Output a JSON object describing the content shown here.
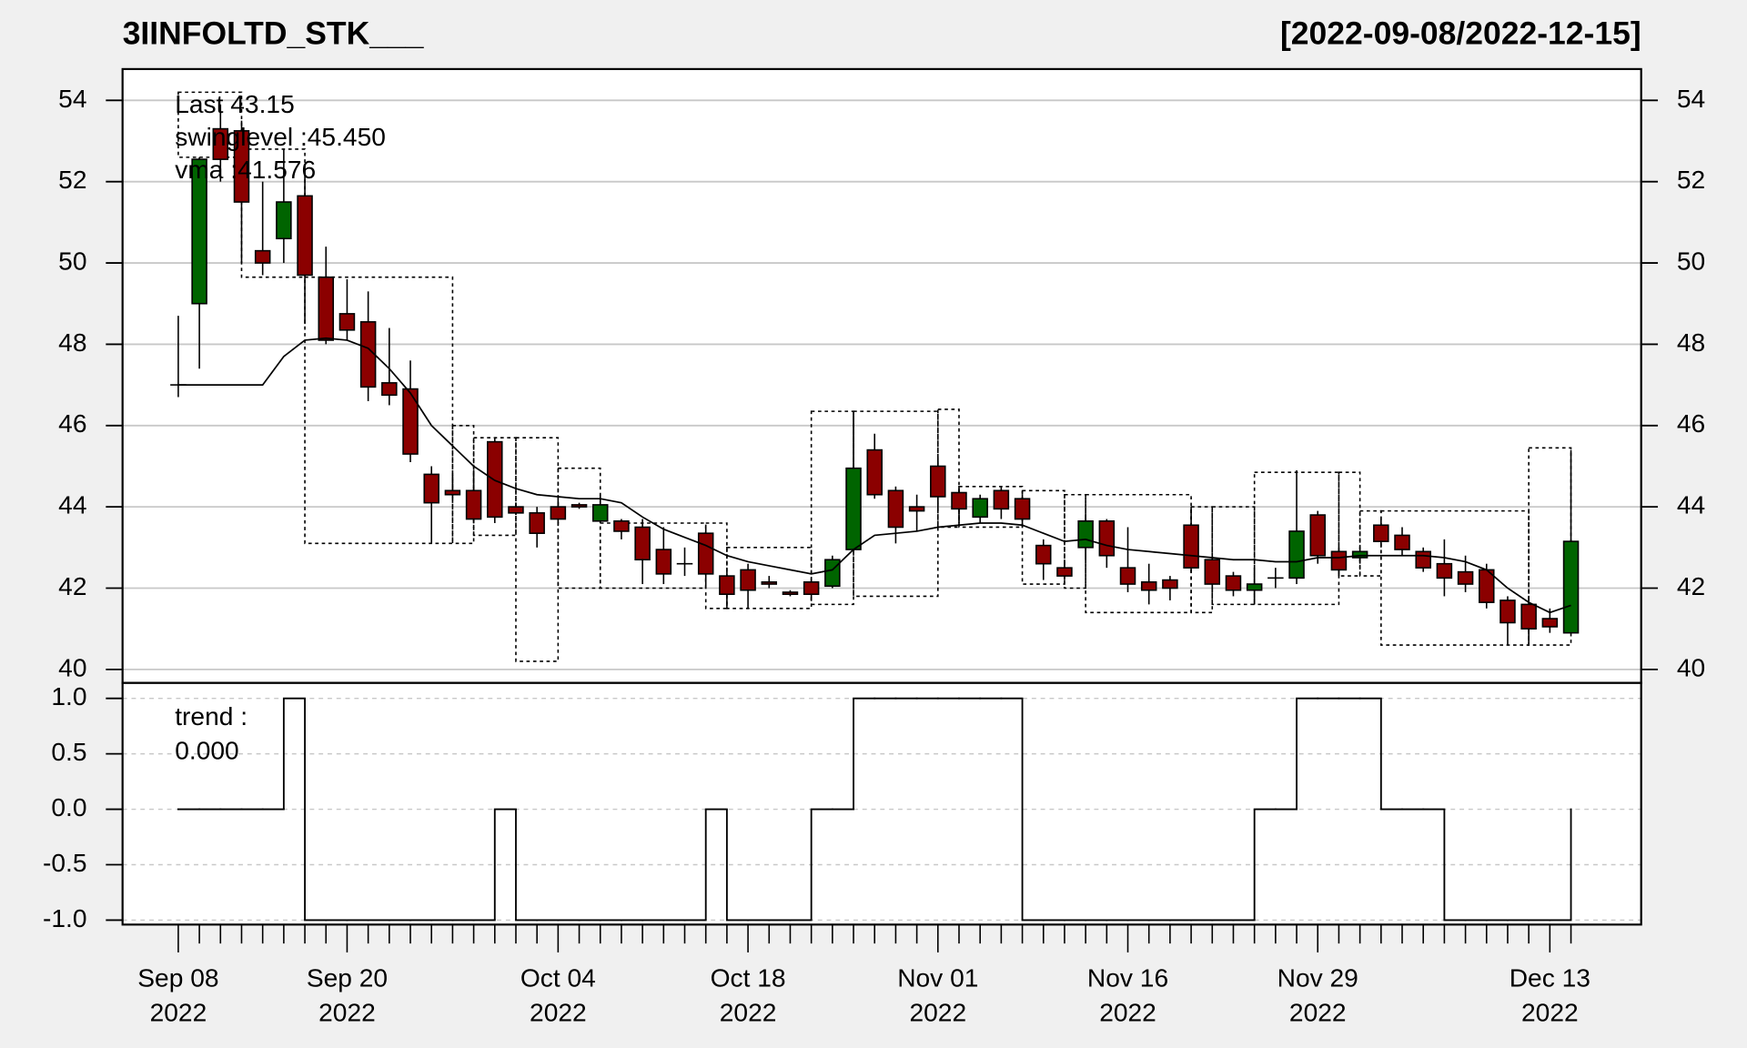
{
  "chart_data": [
    {
      "type": "candlestick",
      "title": "3IINFOLTD_STK___",
      "subtitle": "[2022-09-08/2022-12-15]",
      "annotations": [
        "Last 43.15",
        "swinglevel :45.450",
        "vma :41.576"
      ],
      "annotation_colors": [
        "#006400",
        "#000000",
        "#000000"
      ],
      "up_color": "#006400",
      "down_color": "#8b0000",
      "categories": [
        "Sep 08\n2022",
        null,
        null,
        null,
        null,
        null,
        null,
        null,
        "Sep 20\n2022",
        null,
        null,
        null,
        null,
        null,
        null,
        null,
        null,
        null,
        "Oct 04\n2022",
        null,
        null,
        null,
        null,
        null,
        null,
        null,
        null,
        "Oct 18\n2022",
        null,
        null,
        null,
        null,
        null,
        null,
        null,
        null,
        "Nov 01\n2022",
        null,
        null,
        null,
        null,
        null,
        null,
        null,
        null,
        "Nov 16\n2022",
        null,
        null,
        null,
        null,
        null,
        null,
        null,
        null,
        "Nov 29\n2022",
        null,
        null,
        null,
        null,
        null,
        null,
        null,
        null,
        null,
        null,
        "Dec 13\n2022",
        null
      ],
      "open": [
        47,
        49.0,
        53.3,
        53.25,
        50.3,
        50.6,
        51.65,
        49.65,
        48.75,
        48.55,
        47.05,
        46.9,
        44.8,
        44.4,
        44.4,
        45.6,
        44.0,
        43.85,
        44.0,
        44.05,
        43.65,
        43.65,
        43.5,
        42.95,
        42.6,
        43.35,
        42.3,
        42.45,
        42.15,
        41.9,
        42.15,
        42.05,
        42.95,
        45.4,
        44.4,
        44.0,
        45.0,
        44.35,
        43.75,
        44.4,
        44.2,
        43.05,
        42.5,
        43.0,
        43.65,
        42.5,
        42.15,
        42.2,
        43.55,
        42.7,
        42.3,
        41.95,
        42.25,
        42.25,
        43.8,
        42.9,
        42.75,
        43.55,
        43.3,
        42.9,
        42.6,
        42.4,
        42.45,
        41.7,
        41.6,
        41.25,
        40.9
      ],
      "high": [
        48.7,
        52.6,
        53.9,
        53.5,
        52.0,
        52.8,
        52.3,
        50.4,
        49.6,
        49.3,
        48.4,
        47.6,
        45.0,
        44.8,
        44.9,
        45.7,
        44.1,
        44.0,
        44.2,
        44.1,
        44.3,
        43.7,
        43.7,
        43.5,
        43.0,
        43.5,
        42.4,
        42.6,
        42.3,
        41.95,
        42.2,
        42.8,
        46.3,
        45.8,
        44.5,
        44.3,
        45.2,
        44.5,
        44.3,
        44.5,
        44.3,
        43.2,
        42.7,
        43.8,
        43.7,
        43.5,
        42.6,
        42.3,
        44.0,
        42.8,
        42.4,
        42.5,
        42.5,
        44.9,
        43.9,
        43.0,
        43.0,
        43.7,
        43.5,
        43.0,
        43.2,
        42.8,
        42.6,
        41.8,
        41.8,
        41.5,
        45.4
      ],
      "low": [
        46.7,
        47.4,
        52.0,
        50.0,
        49.7,
        50.0,
        48.5,
        48.0,
        48.1,
        46.6,
        46.5,
        45.1,
        43.1,
        44.2,
        43.6,
        43.6,
        43.8,
        43.0,
        43.6,
        43.95,
        43.6,
        43.2,
        42.1,
        42.1,
        42.3,
        42.0,
        41.5,
        41.5,
        42.0,
        41.8,
        41.7,
        42.0,
        42.9,
        44.2,
        43.1,
        43.4,
        43.9,
        43.6,
        43.6,
        43.7,
        43.5,
        42.2,
        42.2,
        42.7,
        42.5,
        41.9,
        41.6,
        41.7,
        42.4,
        41.9,
        41.8,
        41.6,
        42.0,
        42.1,
        42.6,
        42.3,
        42.6,
        43.0,
        42.8,
        42.4,
        41.8,
        41.9,
        41.5,
        40.6,
        40.6,
        40.9,
        40.9
      ],
      "close": [
        47,
        52.55,
        52.55,
        51.5,
        50.0,
        51.5,
        49.7,
        48.1,
        48.35,
        46.95,
        46.75,
        45.3,
        44.1,
        44.3,
        43.7,
        43.75,
        43.85,
        43.35,
        43.7,
        44.0,
        44.05,
        43.4,
        42.7,
        42.35,
        42.6,
        42.35,
        41.85,
        41.95,
        42.1,
        41.85,
        41.85,
        42.7,
        44.95,
        44.3,
        43.5,
        43.9,
        44.25,
        43.95,
        44.2,
        43.95,
        43.7,
        42.6,
        42.3,
        43.65,
        42.8,
        42.1,
        41.95,
        42.0,
        42.5,
        42.1,
        41.95,
        42.1,
        42.25,
        43.4,
        42.8,
        42.45,
        42.9,
        43.15,
        42.95,
        42.5,
        42.25,
        42.1,
        41.65,
        41.15,
        41.0,
        41.05,
        43.15
      ],
      "vma": {
        "color": "#000000",
        "values": [
          47.0,
          47.0,
          47.0,
          47.0,
          47.0,
          47.7,
          48.1,
          48.15,
          48.1,
          47.9,
          47.4,
          46.8,
          46.0,
          45.5,
          45.0,
          44.65,
          44.45,
          44.3,
          44.25,
          44.2,
          44.2,
          44.1,
          43.75,
          43.45,
          43.25,
          43.05,
          42.8,
          42.65,
          42.55,
          42.45,
          42.35,
          42.45,
          42.95,
          43.3,
          43.35,
          43.4,
          43.5,
          43.55,
          43.6,
          43.6,
          43.55,
          43.35,
          43.15,
          43.2,
          43.05,
          42.95,
          42.9,
          42.85,
          42.8,
          42.75,
          42.7,
          42.7,
          42.65,
          42.65,
          42.75,
          42.75,
          42.8,
          42.8,
          42.8,
          42.8,
          42.75,
          42.65,
          42.45,
          42.0,
          41.65,
          41.4,
          41.576
        ]
      },
      "swing_boxes": [
        {
          "start": 0,
          "end": 3,
          "top": 54.2,
          "bottom": 52.6
        },
        {
          "start": 3,
          "end": 6,
          "top": 52.8,
          "bottom": 49.65
        },
        {
          "start": 6,
          "end": 13,
          "top": 49.65,
          "bottom": 43.1
        },
        {
          "start": 13,
          "end": 14,
          "top": 46.0,
          "bottom": 43.1
        },
        {
          "start": 14,
          "end": 16,
          "top": 45.7,
          "bottom": 43.3
        },
        {
          "start": 16,
          "end": 18,
          "top": 45.7,
          "bottom": 40.2
        },
        {
          "start": 18,
          "end": 20,
          "top": 44.95,
          "bottom": 42.0
        },
        {
          "start": 20,
          "end": 25,
          "top": 43.6,
          "bottom": 42.0
        },
        {
          "start": 25,
          "end": 26,
          "top": 43.6,
          "bottom": 41.5
        },
        {
          "start": 26,
          "end": 30,
          "top": 43.0,
          "bottom": 41.5
        },
        {
          "start": 30,
          "end": 32,
          "top": 46.35,
          "bottom": 41.6
        },
        {
          "start": 32,
          "end": 36,
          "top": 46.35,
          "bottom": 41.8
        },
        {
          "start": 36,
          "end": 37,
          "top": 46.4,
          "bottom": 43.5
        },
        {
          "start": 37,
          "end": 40,
          "top": 44.5,
          "bottom": 43.5
        },
        {
          "start": 40,
          "end": 42,
          "top": 44.4,
          "bottom": 42.1
        },
        {
          "start": 42,
          "end": 43,
          "top": 44.3,
          "bottom": 42.0
        },
        {
          "start": 43,
          "end": 48,
          "top": 44.3,
          "bottom": 41.4
        },
        {
          "start": 48,
          "end": 49,
          "top": 44.0,
          "bottom": 41.4
        },
        {
          "start": 49,
          "end": 51,
          "top": 44.0,
          "bottom": 41.6
        },
        {
          "start": 51,
          "end": 55,
          "top": 44.85,
          "bottom": 41.6
        },
        {
          "start": 55,
          "end": 56,
          "top": 44.85,
          "bottom": 42.3
        },
        {
          "start": 56,
          "end": 57,
          "top": 43.9,
          "bottom": 42.3
        },
        {
          "start": 57,
          "end": 64,
          "top": 43.9,
          "bottom": 40.6
        },
        {
          "start": 64,
          "end": 66,
          "top": 45.45,
          "bottom": 40.6
        }
      ],
      "ylim": [
        39.67,
        54.77
      ],
      "yticks": [
        40,
        42,
        44,
        46,
        48,
        50,
        52,
        54
      ],
      "grid": true
    },
    {
      "type": "step",
      "annotations": [
        "trend :",
        "0.000"
      ],
      "color": "#000000",
      "values": [
        0,
        0,
        0,
        0,
        0,
        1,
        -1,
        -1,
        -1,
        -1,
        -1,
        -1,
        -1,
        -1,
        -1,
        0,
        -1,
        -1,
        -1,
        -1,
        -1,
        -1,
        -1,
        -1,
        -1,
        0,
        -1,
        -1,
        -1,
        -1,
        0,
        0,
        1,
        1,
        1,
        1,
        1,
        1,
        1,
        1,
        -1,
        -1,
        -1,
        -1,
        -1,
        -1,
        -1,
        -1,
        -1,
        -1,
        -1,
        0,
        0,
        1,
        1,
        1,
        1,
        0,
        0,
        0,
        -1,
        -1,
        -1,
        -1,
        -1,
        -1,
        0
      ],
      "ylim": [
        -1.04,
        1.14
      ],
      "yticks": [
        {
          "value": 1,
          "label": "1.0"
        },
        {
          "value": 0.5,
          "label": "0.5"
        },
        {
          "value": 0,
          "label": "0.0"
        },
        {
          "value": -0.5,
          "label": "-0.5"
        },
        {
          "value": -1,
          "label": "-1.0"
        }
      ],
      "grid": true
    }
  ]
}
